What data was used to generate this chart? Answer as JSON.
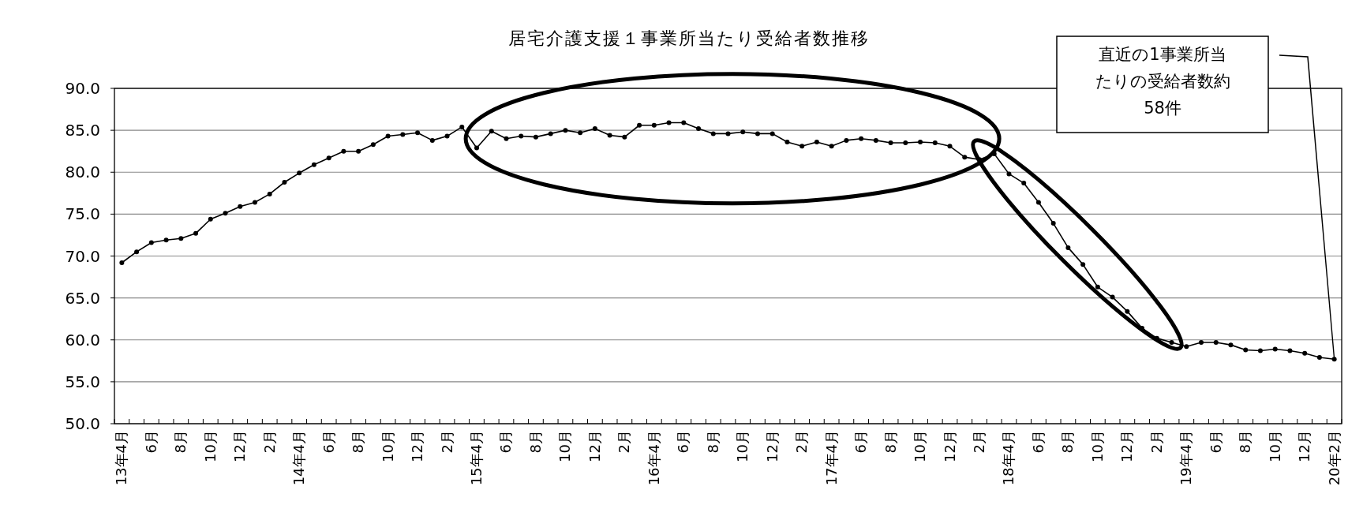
{
  "chart_data": {
    "type": "line",
    "title": "居宅介護支援１事業所当たり受給者数推移",
    "categories": [
      "13年4月",
      null,
      "6月",
      null,
      "8月",
      null,
      "10月",
      null,
      "12月",
      null,
      "2月",
      null,
      "14年4月",
      null,
      "6月",
      null,
      "8月",
      null,
      "10月",
      null,
      "12月",
      null,
      "2月",
      null,
      "15年4月",
      null,
      "6月",
      null,
      "8月",
      null,
      "10月",
      null,
      "12月",
      null,
      "2月",
      null,
      "16年4月",
      null,
      "6月",
      null,
      "8月",
      null,
      "10月",
      null,
      "12月",
      null,
      "2月",
      null,
      "17年4月",
      null,
      "6月",
      null,
      "8月",
      null,
      "10月",
      null,
      "12月",
      null,
      "2月",
      null,
      "18年4月",
      null,
      "6月",
      null,
      "8月",
      null,
      "10月",
      null,
      "12月",
      null,
      "2月",
      null,
      "19年4月",
      null,
      "6月",
      null,
      "8月",
      null,
      "10月",
      null,
      "12月",
      null,
      "20年2月"
    ],
    "series": [
      {
        "color": "#000000",
        "values": [
          69.2,
          70.5,
          71.6,
          71.9,
          72.1,
          72.7,
          74.4,
          75.1,
          75.9,
          76.4,
          77.4,
          78.8,
          79.9,
          80.9,
          81.7,
          82.5,
          82.5,
          83.3,
          84.3,
          84.5,
          84.7,
          83.8,
          84.3,
          85.4,
          82.9,
          84.9,
          84.0,
          84.3,
          84.2,
          84.6,
          85.0,
          84.7,
          85.2,
          84.4,
          84.2,
          85.6,
          85.6,
          85.9,
          85.9,
          85.2,
          84.6,
          84.6,
          84.8,
          84.6,
          84.6,
          83.6,
          83.1,
          83.6,
          83.1,
          83.8,
          84.0,
          83.8,
          83.5,
          83.5,
          83.6,
          83.5,
          83.1,
          81.8,
          81.5,
          82.2,
          79.8,
          78.7,
          76.4,
          73.9,
          71.0,
          69.0,
          66.3,
          65.1,
          63.4,
          61.4,
          60.2,
          59.7,
          59.2,
          59.7,
          59.7,
          59.4,
          58.8,
          58.7,
          58.9,
          58.7,
          58.4,
          57.9,
          57.7
        ]
      }
    ],
    "ylim": [
      50,
      90
    ],
    "yticks": [
      {
        "value": 50,
        "label": "50.0"
      },
      {
        "value": 55,
        "label": "55.0"
      },
      {
        "value": 60,
        "label": "60.0"
      },
      {
        "value": 65,
        "label": "65.0"
      },
      {
        "value": 70,
        "label": "70.0"
      },
      {
        "value": 75,
        "label": "75.0"
      },
      {
        "value": 80,
        "label": "80.0"
      },
      {
        "value": 85,
        "label": "85.0"
      },
      {
        "value": 90,
        "label": "90.0"
      }
    ],
    "grid": "y",
    "marker": "circle",
    "annotations": [
      "直近の1事業所当たりの受給者数約58件"
    ]
  }
}
